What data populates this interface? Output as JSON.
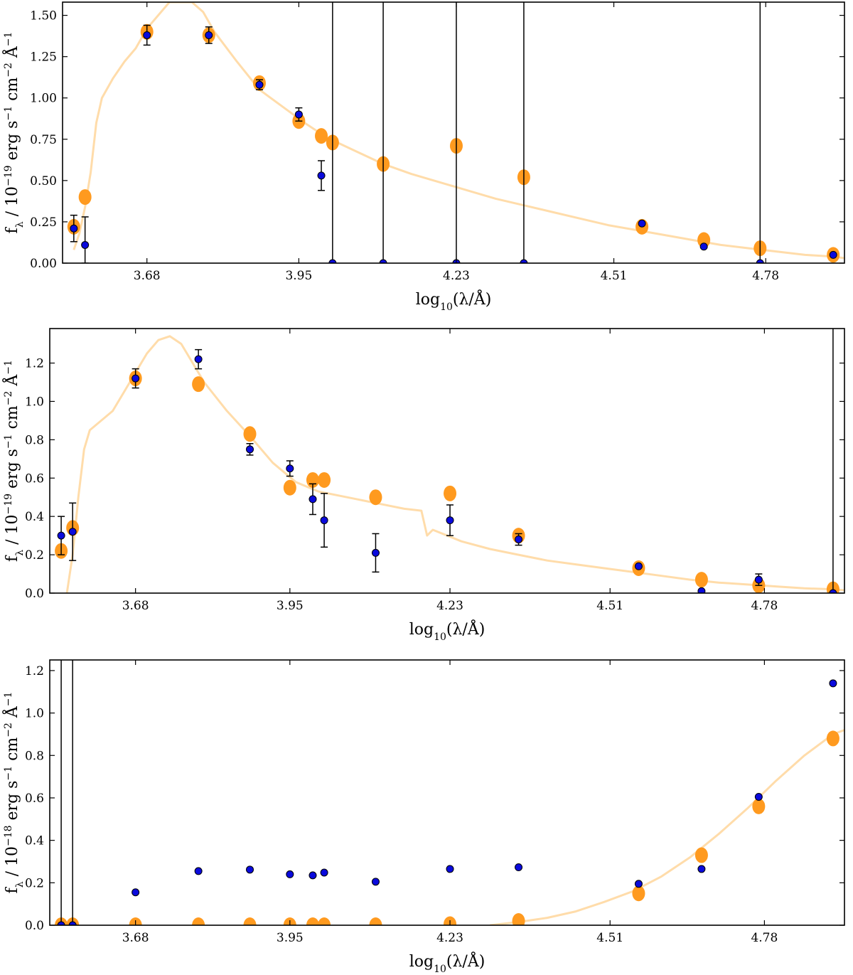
{
  "colors": {
    "model_spectrum": "#ffdcaa",
    "model_photometry": "#ff9a1f",
    "observed": "#0a0adc",
    "errorbar": "#000000",
    "frame": "#000000"
  },
  "chart_data": [
    {
      "type": "scatter",
      "panel": "top",
      "xlabel": "log10(λ/Å)",
      "ylabel": "fλ / 10^-19 erg s^-1 cm^-2 Å^-1",
      "xlabel_parts": [
        "log",
        "10",
        "(λ/Å)"
      ],
      "ylabel_parts": [
        "f",
        "λ",
        " / 10",
        "−19",
        " erg s",
        "−1",
        " cm",
        "−2",
        " Å",
        "−1"
      ],
      "xlim": [
        3.53,
        4.92
      ],
      "ylim": [
        0,
        1.58
      ],
      "xticks": [
        3.68,
        3.95,
        4.23,
        4.51,
        4.78
      ],
      "xtick_labels": [
        "3.68",
        "3.95",
        "4.23",
        "4.51",
        "4.78"
      ],
      "yticks": [
        0.0,
        0.25,
        0.5,
        0.75,
        1.0,
        1.25,
        1.5
      ],
      "ytick_labels": [
        "0.00",
        "0.25",
        "0.50",
        "0.75",
        "1.00",
        "1.25",
        "1.50"
      ],
      "model_spectrum": {
        "x": [
          3.55,
          3.56,
          3.57,
          3.58,
          3.59,
          3.6,
          3.62,
          3.64,
          3.66,
          3.68,
          3.7,
          3.72,
          3.74,
          3.76,
          3.78,
          3.8,
          3.84,
          3.88,
          3.92,
          3.96,
          4.0,
          4.05,
          4.1,
          4.15,
          4.2,
          4.25,
          4.3,
          4.35,
          4.4,
          4.45,
          4.5,
          4.55,
          4.6,
          4.65,
          4.7,
          4.75,
          4.8,
          4.85,
          4.9,
          4.92
        ],
        "y": [
          0.08,
          0.18,
          0.34,
          0.55,
          0.85,
          1.0,
          1.12,
          1.22,
          1.3,
          1.42,
          1.5,
          1.58,
          1.58,
          1.58,
          1.52,
          1.4,
          1.22,
          1.05,
          0.95,
          0.85,
          0.76,
          0.68,
          0.6,
          0.54,
          0.49,
          0.44,
          0.39,
          0.35,
          0.31,
          0.27,
          0.23,
          0.2,
          0.17,
          0.14,
          0.11,
          0.09,
          0.07,
          0.05,
          0.04,
          0.03
        ]
      },
      "model_photometry": {
        "x": [
          3.55,
          3.57,
          3.68,
          3.79,
          3.88,
          3.95,
          3.99,
          4.01,
          4.1,
          4.23,
          4.35,
          4.56,
          4.67,
          4.77,
          4.9
        ],
        "y": [
          0.22,
          0.4,
          1.4,
          1.38,
          1.09,
          0.86,
          0.77,
          0.73,
          0.6,
          0.71,
          0.52,
          0.22,
          0.14,
          0.09,
          0.05
        ]
      },
      "observed": {
        "x": [
          3.55,
          3.57,
          3.68,
          3.79,
          3.88,
          3.95,
          3.99,
          4.01,
          4.1,
          4.23,
          4.35,
          4.56,
          4.67,
          4.77,
          4.9
        ],
        "y": [
          0.21,
          0.11,
          1.38,
          1.38,
          1.08,
          0.9,
          0.53,
          0.0,
          0.0,
          0.0,
          0.0,
          0.24,
          0.1,
          0.0,
          0.05
        ],
        "yerr": [
          0.08,
          0.17,
          0.06,
          0.05,
          0.03,
          0.04,
          0.09,
          2.0,
          2.0,
          2.0,
          2.0,
          0.0,
          0.0,
          2.0,
          0.0
        ]
      }
    },
    {
      "type": "scatter",
      "panel": "middle",
      "xlabel": "log10(λ/Å)",
      "ylabel": "fλ / 10^-19 erg s^-1 cm^-2 Å^-1",
      "xlabel_parts": [
        "log",
        "10",
        "(λ/Å)"
      ],
      "ylabel_parts": [
        "f",
        "λ",
        " / 10",
        "−19",
        " erg s",
        "−1",
        " cm",
        "−2",
        " Å",
        "−1"
      ],
      "xlim": [
        3.53,
        4.92
      ],
      "ylim": [
        0,
        1.38
      ],
      "xticks": [
        3.68,
        3.95,
        4.23,
        4.51,
        4.78
      ],
      "xtick_labels": [
        "3.68",
        "3.95",
        "4.23",
        "4.51",
        "4.78"
      ],
      "yticks": [
        0.0,
        0.2,
        0.4,
        0.6,
        0.8,
        1.0,
        1.2
      ],
      "ytick_labels": [
        "0.0",
        "0.2",
        "0.4",
        "0.6",
        "0.8",
        "1.0",
        "1.2"
      ],
      "model_spectrum": {
        "x": [
          3.56,
          3.57,
          3.58,
          3.59,
          3.6,
          3.62,
          3.64,
          3.66,
          3.68,
          3.7,
          3.72,
          3.74,
          3.76,
          3.78,
          3.8,
          3.84,
          3.88,
          3.92,
          3.96,
          4.0,
          4.05,
          4.1,
          4.15,
          4.18,
          4.19,
          4.2,
          4.25,
          4.3,
          4.35,
          4.4,
          4.45,
          4.5,
          4.55,
          4.6,
          4.65,
          4.7,
          4.75,
          4.8,
          4.85,
          4.9,
          4.92
        ],
        "y": [
          0.0,
          0.2,
          0.5,
          0.75,
          0.85,
          0.9,
          0.95,
          1.05,
          1.15,
          1.25,
          1.32,
          1.34,
          1.3,
          1.2,
          1.1,
          0.95,
          0.82,
          0.68,
          0.58,
          0.53,
          0.5,
          0.47,
          0.44,
          0.43,
          0.3,
          0.33,
          0.27,
          0.23,
          0.2,
          0.17,
          0.15,
          0.13,
          0.11,
          0.09,
          0.07,
          0.055,
          0.045,
          0.035,
          0.025,
          0.02,
          0.015
        ]
      },
      "model_photometry": {
        "x": [
          3.55,
          3.57,
          3.68,
          3.79,
          3.88,
          3.95,
          3.99,
          4.01,
          4.1,
          4.23,
          4.35,
          4.56,
          4.67,
          4.77,
          4.9
        ],
        "y": [
          0.22,
          0.34,
          1.12,
          1.09,
          0.83,
          0.55,
          0.59,
          0.59,
          0.5,
          0.52,
          0.3,
          0.13,
          0.07,
          0.04,
          0.02
        ]
      },
      "observed": {
        "x": [
          3.55,
          3.57,
          3.68,
          3.79,
          3.88,
          3.95,
          3.99,
          4.01,
          4.1,
          4.23,
          4.35,
          4.56,
          4.67,
          4.77,
          4.9
        ],
        "y": [
          0.3,
          0.32,
          1.12,
          1.22,
          0.75,
          0.65,
          0.49,
          0.38,
          0.21,
          0.38,
          0.28,
          0.14,
          0.01,
          0.07,
          0.0
        ],
        "yerr": [
          0.1,
          0.15,
          0.05,
          0.05,
          0.03,
          0.04,
          0.08,
          0.14,
          0.1,
          0.08,
          0.03,
          0.0,
          0.0,
          0.03,
          2.0
        ]
      }
    },
    {
      "type": "scatter",
      "panel": "bottom",
      "xlabel": "log10(λ/Å)",
      "ylabel": "fλ / 10^-18 erg s^-1 cm^-2 Å^-1",
      "xlabel_parts": [
        "log",
        "10",
        "(λ/Å)"
      ],
      "ylabel_parts": [
        "f",
        "λ",
        " / 10",
        "−18",
        " erg s",
        "−1",
        " cm",
        "−2",
        " Å",
        "−1"
      ],
      "xlim": [
        3.53,
        4.92
      ],
      "ylim": [
        0,
        1.25
      ],
      "xticks": [
        3.68,
        3.95,
        4.23,
        4.51,
        4.78
      ],
      "xtick_labels": [
        "3.68",
        "3.95",
        "4.23",
        "4.51",
        "4.78"
      ],
      "yticks": [
        0.0,
        0.2,
        0.4,
        0.6,
        0.8,
        1.0,
        1.2
      ],
      "ytick_labels": [
        "0.0",
        "0.2",
        "0.4",
        "0.6",
        "0.8",
        "1.0",
        "1.2"
      ],
      "model_spectrum": {
        "x": [
          4.3,
          4.35,
          4.4,
          4.45,
          4.5,
          4.55,
          4.6,
          4.65,
          4.7,
          4.75,
          4.8,
          4.85,
          4.9,
          4.92
        ],
        "y": [
          0.0,
          0.015,
          0.035,
          0.065,
          0.11,
          0.16,
          0.23,
          0.32,
          0.43,
          0.55,
          0.68,
          0.8,
          0.9,
          0.92
        ]
      },
      "model_photometry": {
        "x": [
          3.55,
          3.57,
          3.68,
          3.79,
          3.88,
          3.95,
          3.99,
          4.01,
          4.1,
          4.23,
          4.35,
          4.56,
          4.67,
          4.77,
          4.9
        ],
        "y": [
          0.0,
          0.0,
          0.0,
          0.0,
          0.0,
          0.0,
          0.0,
          0.0,
          0.0,
          0.005,
          0.02,
          0.15,
          0.33,
          0.56,
          0.88
        ]
      },
      "observed": {
        "x": [
          3.55,
          3.57,
          3.68,
          3.79,
          3.88,
          3.95,
          3.99,
          4.01,
          4.1,
          4.23,
          4.35,
          4.56,
          4.67,
          4.77,
          4.9
        ],
        "y": [
          0.0,
          0.0,
          0.155,
          0.255,
          0.262,
          0.24,
          0.235,
          0.248,
          0.205,
          0.265,
          0.273,
          0.195,
          0.265,
          0.605,
          1.14
        ],
        "yerr": [
          2.0,
          2.0,
          0.0,
          0.0,
          0.0,
          0.0,
          0.0,
          0.0,
          0.0,
          0.0,
          0.0,
          0.0,
          0.0,
          0.0,
          0.0
        ]
      }
    }
  ]
}
